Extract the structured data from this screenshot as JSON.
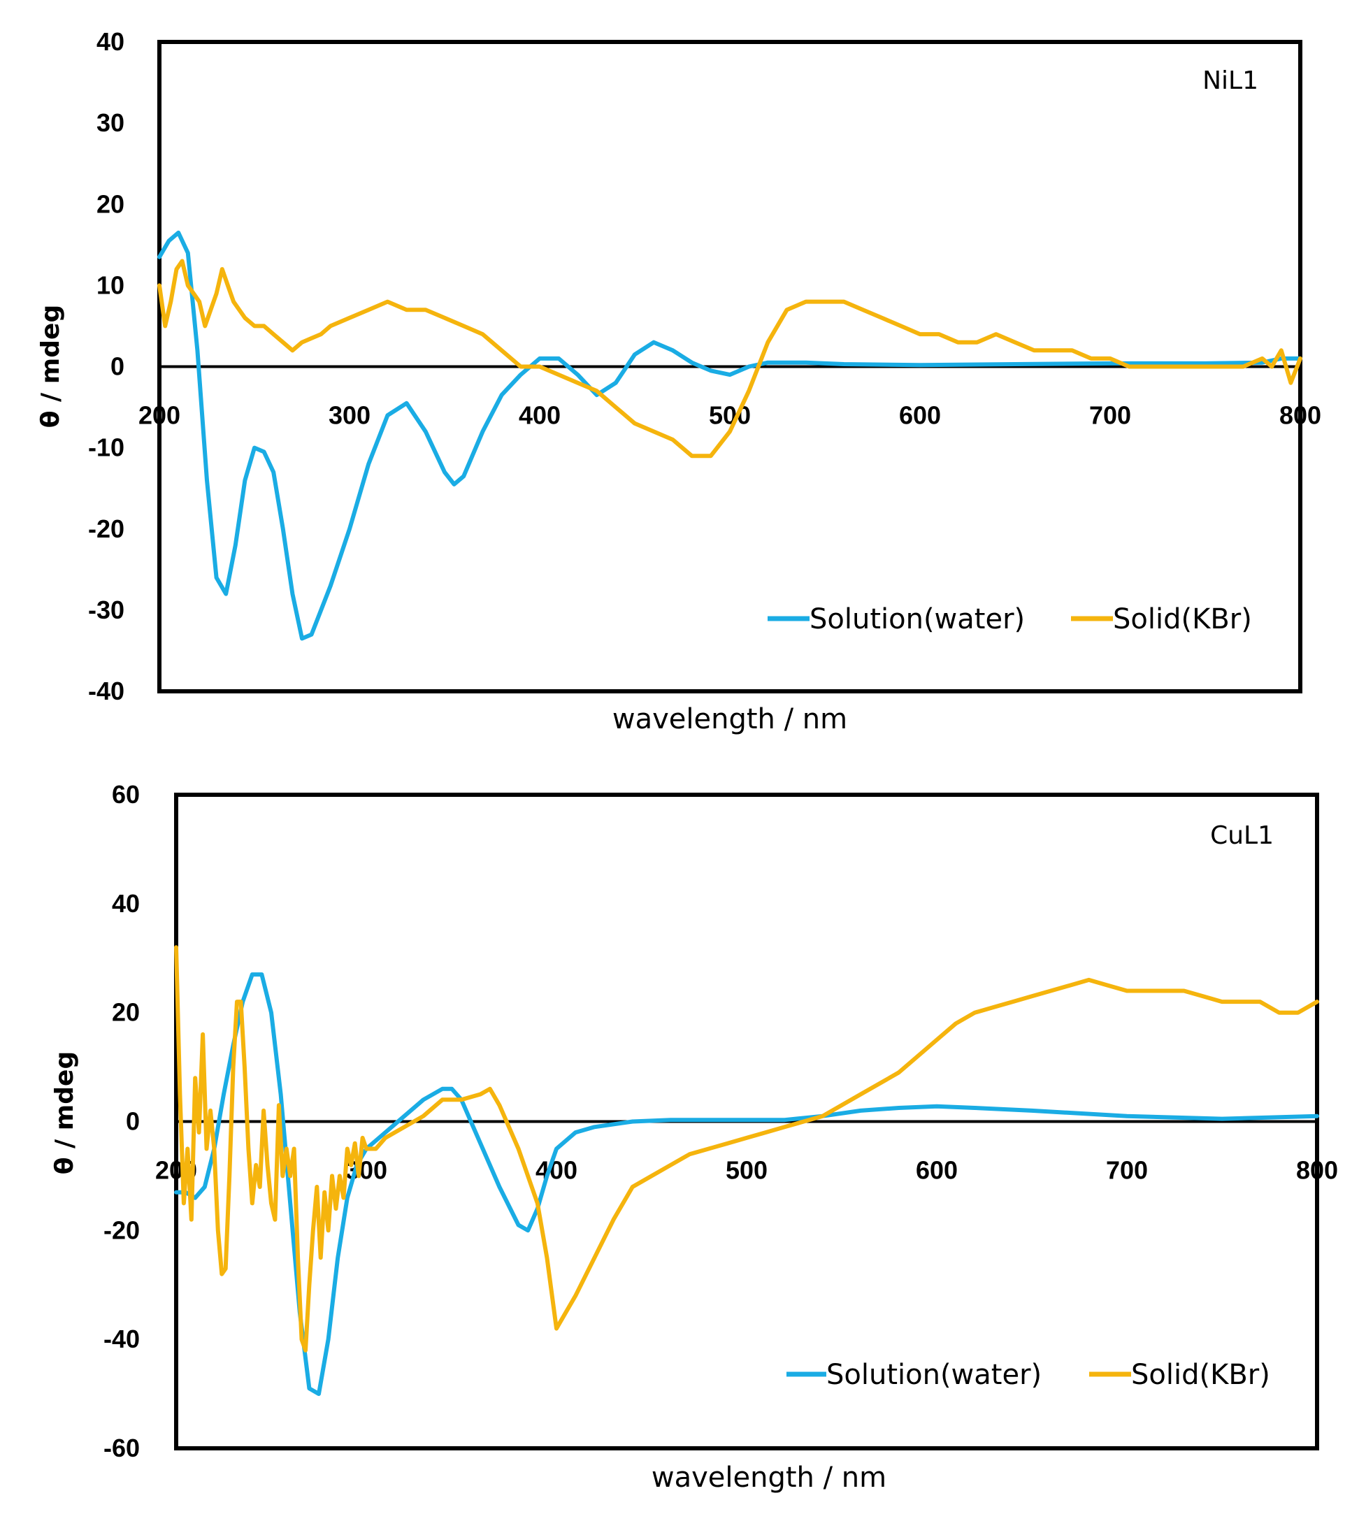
{
  "chart_data": [
    {
      "type": "line",
      "title": "NiL1",
      "xlabel": "wavelength / nm",
      "ylabel": "θ / mdeg",
      "xlim": [
        200,
        800
      ],
      "ylim": [
        -40,
        40
      ],
      "xticks": [
        "200",
        "300",
        "400",
        "500",
        "600",
        "700",
        "800"
      ],
      "yticks": [
        "40",
        "30",
        "20",
        "10",
        "0",
        "-10",
        "-20",
        "-30",
        "-40"
      ],
      "legend_position": "bottom-right",
      "series": [
        {
          "name": "Solution(water)",
          "color": "#1AACE4",
          "x": [
            200,
            205,
            210,
            215,
            220,
            225,
            230,
            235,
            240,
            245,
            250,
            255,
            260,
            265,
            270,
            275,
            280,
            290,
            300,
            310,
            320,
            330,
            340,
            350,
            355,
            360,
            370,
            380,
            390,
            400,
            410,
            420,
            430,
            440,
            450,
            460,
            470,
            480,
            490,
            500,
            510,
            520,
            540,
            560,
            600,
            650,
            700,
            750,
            780,
            790,
            800
          ],
          "y": [
            13.5,
            15.5,
            16.5,
            14,
            2,
            -14,
            -26,
            -28,
            -22,
            -14,
            -10,
            -10.5,
            -13,
            -20,
            -28,
            -33.5,
            -33,
            -27,
            -20,
            -12,
            -6,
            -4.5,
            -8,
            -13,
            -14.5,
            -13.5,
            -8,
            -3.5,
            -1,
            1,
            1,
            -1,
            -3.5,
            -2,
            1.5,
            3,
            2,
            0.5,
            -0.5,
            -1,
            0,
            0.5,
            0.5,
            0.3,
            0.2,
            0.3,
            0.4,
            0.4,
            0.5,
            1,
            1
          ]
        },
        {
          "name": "Solid(KBr)",
          "color": "#F5B40D",
          "x": [
            200,
            203,
            206,
            209,
            212,
            215,
            218,
            221,
            224,
            227,
            230,
            233,
            236,
            239,
            242,
            245,
            250,
            255,
            260,
            265,
            270,
            275,
            280,
            285,
            290,
            300,
            310,
            320,
            330,
            340,
            350,
            360,
            370,
            380,
            390,
            400,
            410,
            420,
            430,
            440,
            450,
            460,
            470,
            480,
            490,
            500,
            510,
            520,
            530,
            540,
            550,
            560,
            570,
            580,
            590,
            600,
            610,
            620,
            630,
            640,
            650,
            660,
            670,
            680,
            690,
            700,
            710,
            720,
            730,
            740,
            750,
            760,
            770,
            780,
            785,
            790,
            795,
            800
          ],
          "y": [
            10,
            5,
            8,
            12,
            13,
            10,
            9,
            8,
            5,
            7,
            9,
            12,
            10,
            8,
            7,
            6,
            5,
            5,
            4,
            3,
            2,
            3,
            3.5,
            4,
            5,
            6,
            7,
            8,
            7,
            7,
            6,
            5,
            4,
            2,
            0,
            0,
            -1,
            -2,
            -3,
            -5,
            -7,
            -8,
            -9,
            -11,
            -11,
            -8,
            -3,
            3,
            7,
            8,
            8,
            8,
            7,
            6,
            5,
            4,
            4,
            3,
            3,
            4,
            3,
            2,
            2,
            2,
            1,
            1,
            0,
            0,
            0,
            0,
            0,
            0,
            0,
            1,
            0,
            2,
            -2,
            1
          ]
        }
      ]
    },
    {
      "type": "line",
      "title": "CuL1",
      "xlabel": "wavelength / nm",
      "ylabel": "θ / mdeg",
      "xlim": [
        200,
        800
      ],
      "ylim": [
        -60,
        60
      ],
      "xticks": [
        "200",
        "300",
        "400",
        "500",
        "600",
        "700",
        "800"
      ],
      "yticks": [
        "60",
        "40",
        "20",
        "0",
        "-20",
        "-40",
        "-60"
      ],
      "legend_position": "bottom-right",
      "series": [
        {
          "name": "Solution(water)",
          "color": "#1AACE4",
          "x": [
            200,
            205,
            210,
            215,
            220,
            225,
            230,
            235,
            240,
            245,
            250,
            255,
            260,
            265,
            270,
            275,
            280,
            285,
            290,
            295,
            300,
            310,
            320,
            330,
            340,
            345,
            350,
            360,
            370,
            380,
            385,
            390,
            395,
            400,
            410,
            420,
            440,
            460,
            480,
            500,
            520,
            540,
            560,
            580,
            600,
            620,
            650,
            700,
            750,
            800
          ],
          "y": [
            -13,
            -13,
            -14,
            -12,
            -5,
            5,
            14,
            22,
            27,
            27,
            20,
            5,
            -15,
            -35,
            -49,
            -50,
            -40,
            -25,
            -14,
            -8,
            -5,
            -2,
            1,
            4,
            6,
            6,
            4,
            -4,
            -12,
            -19,
            -20,
            -16,
            -10,
            -5,
            -2,
            -1,
            0,
            0.3,
            0.3,
            0.3,
            0.3,
            1,
            2,
            2.5,
            2.8,
            2.5,
            2,
            1,
            0.5,
            1
          ]
        },
        {
          "name": "Solid(KBr)",
          "color": "#F5B40D",
          "x": [
            200,
            202,
            204,
            206,
            208,
            210,
            212,
            214,
            216,
            218,
            220,
            222,
            224,
            226,
            228,
            230,
            232,
            234,
            236,
            238,
            240,
            242,
            244,
            246,
            248,
            250,
            252,
            254,
            256,
            258,
            260,
            262,
            264,
            266,
            268,
            270,
            272,
            274,
            276,
            278,
            280,
            282,
            284,
            286,
            288,
            290,
            292,
            294,
            296,
            298,
            300,
            305,
            310,
            320,
            330,
            340,
            350,
            360,
            365,
            370,
            380,
            390,
            395,
            400,
            410,
            420,
            430,
            440,
            450,
            460,
            470,
            480,
            490,
            500,
            510,
            520,
            530,
            540,
            550,
            560,
            570,
            580,
            590,
            600,
            610,
            620,
            630,
            640,
            650,
            660,
            670,
            680,
            690,
            700,
            710,
            720,
            730,
            740,
            750,
            760,
            770,
            780,
            790,
            800
          ],
          "y": [
            32,
            5,
            -15,
            -5,
            -18,
            8,
            -2,
            16,
            -5,
            2,
            -5,
            -20,
            -28,
            -27,
            -10,
            10,
            22,
            22,
            10,
            -5,
            -15,
            -8,
            -12,
            2,
            -8,
            -15,
            -18,
            3,
            -10,
            -5,
            -10,
            -5,
            -25,
            -40,
            -42,
            -30,
            -20,
            -12,
            -25,
            -13,
            -20,
            -10,
            -16,
            -10,
            -14,
            -5,
            -8,
            -4,
            -10,
            -3,
            -5,
            -5,
            -3,
            -1,
            1,
            4,
            4,
            5,
            6,
            3,
            -5,
            -15,
            -25,
            -38,
            -32,
            -25,
            -18,
            -12,
            -10,
            -8,
            -6,
            -5,
            -4,
            -3,
            -2,
            -1,
            0,
            1,
            3,
            5,
            7,
            9,
            12,
            15,
            18,
            20,
            21,
            22,
            23,
            24,
            25,
            26,
            25,
            24,
            24,
            24,
            24,
            23,
            22,
            22,
            22,
            20,
            20,
            22
          ]
        }
      ]
    }
  ]
}
